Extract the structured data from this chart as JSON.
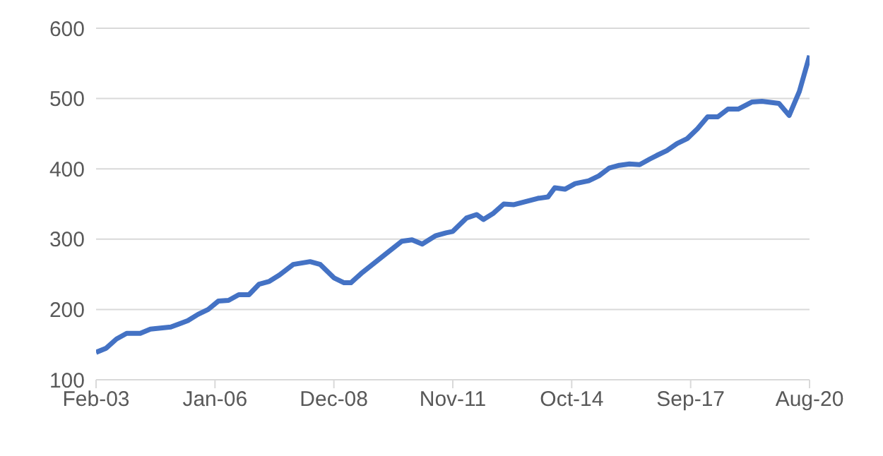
{
  "chart_data": {
    "type": "line",
    "x": [
      "2003-02",
      "2003-05",
      "2003-08",
      "2003-11",
      "2004-03",
      "2004-06",
      "2004-12",
      "2005-05",
      "2005-08",
      "2005-11",
      "2006-02",
      "2006-05",
      "2006-08",
      "2006-11",
      "2007-02",
      "2007-05",
      "2007-08",
      "2007-12",
      "2008-05",
      "2008-08",
      "2008-12",
      "2009-03",
      "2009-05",
      "2009-08",
      "2010-03",
      "2010-08",
      "2010-11",
      "2011-02",
      "2011-06",
      "2011-09",
      "2011-11",
      "2012-03",
      "2012-06",
      "2012-08",
      "2012-11",
      "2013-02",
      "2013-05",
      "2013-08",
      "2013-12",
      "2014-03",
      "2014-05",
      "2014-08",
      "2014-11",
      "2015-03",
      "2015-06",
      "2015-09",
      "2015-12",
      "2016-03",
      "2016-06",
      "2016-09",
      "2016-11",
      "2017-02",
      "2017-05",
      "2017-08",
      "2017-11",
      "2018-02",
      "2018-05",
      "2018-08",
      "2018-11",
      "2019-03",
      "2019-06",
      "2019-11",
      "2020-02",
      "2020-05",
      "2020-08"
    ],
    "series": [
      {
        "color": "#4472c4",
        "values": [
          139,
          145,
          158,
          166,
          166,
          172,
          175,
          184,
          193,
          200,
          212,
          213,
          221,
          221,
          236,
          240,
          249,
          264,
          268,
          264,
          245,
          238,
          238,
          251,
          278,
          297,
          299,
          293,
          305,
          309,
          311,
          330,
          335,
          328,
          337,
          350,
          349,
          353,
          358,
          360,
          373,
          371,
          379,
          383,
          390,
          401,
          405,
          407,
          406,
          414,
          419,
          426,
          436,
          443,
          457,
          474,
          474,
          485,
          485,
          495,
          496,
          493,
          476,
          510,
          561
        ]
      }
    ],
    "xlim": [
      "2003-02",
      "2020-08"
    ],
    "xticks": [
      {
        "value": "2003-02",
        "label": "Feb-03"
      },
      {
        "value": "2006-01",
        "label": "Jan-06"
      },
      {
        "value": "2008-12",
        "label": "Dec-08"
      },
      {
        "value": "2011-11",
        "label": "Nov-11"
      },
      {
        "value": "2014-10",
        "label": "Oct-14"
      },
      {
        "value": "2017-09",
        "label": "Sep-17"
      },
      {
        "value": "2020-08",
        "label": "Aug-20"
      }
    ],
    "ylim": [
      100,
      600
    ],
    "yticks": [
      100,
      200,
      300,
      400,
      500,
      600
    ],
    "grid": "y",
    "legend": false,
    "marker": "none",
    "line_style": "solid"
  }
}
